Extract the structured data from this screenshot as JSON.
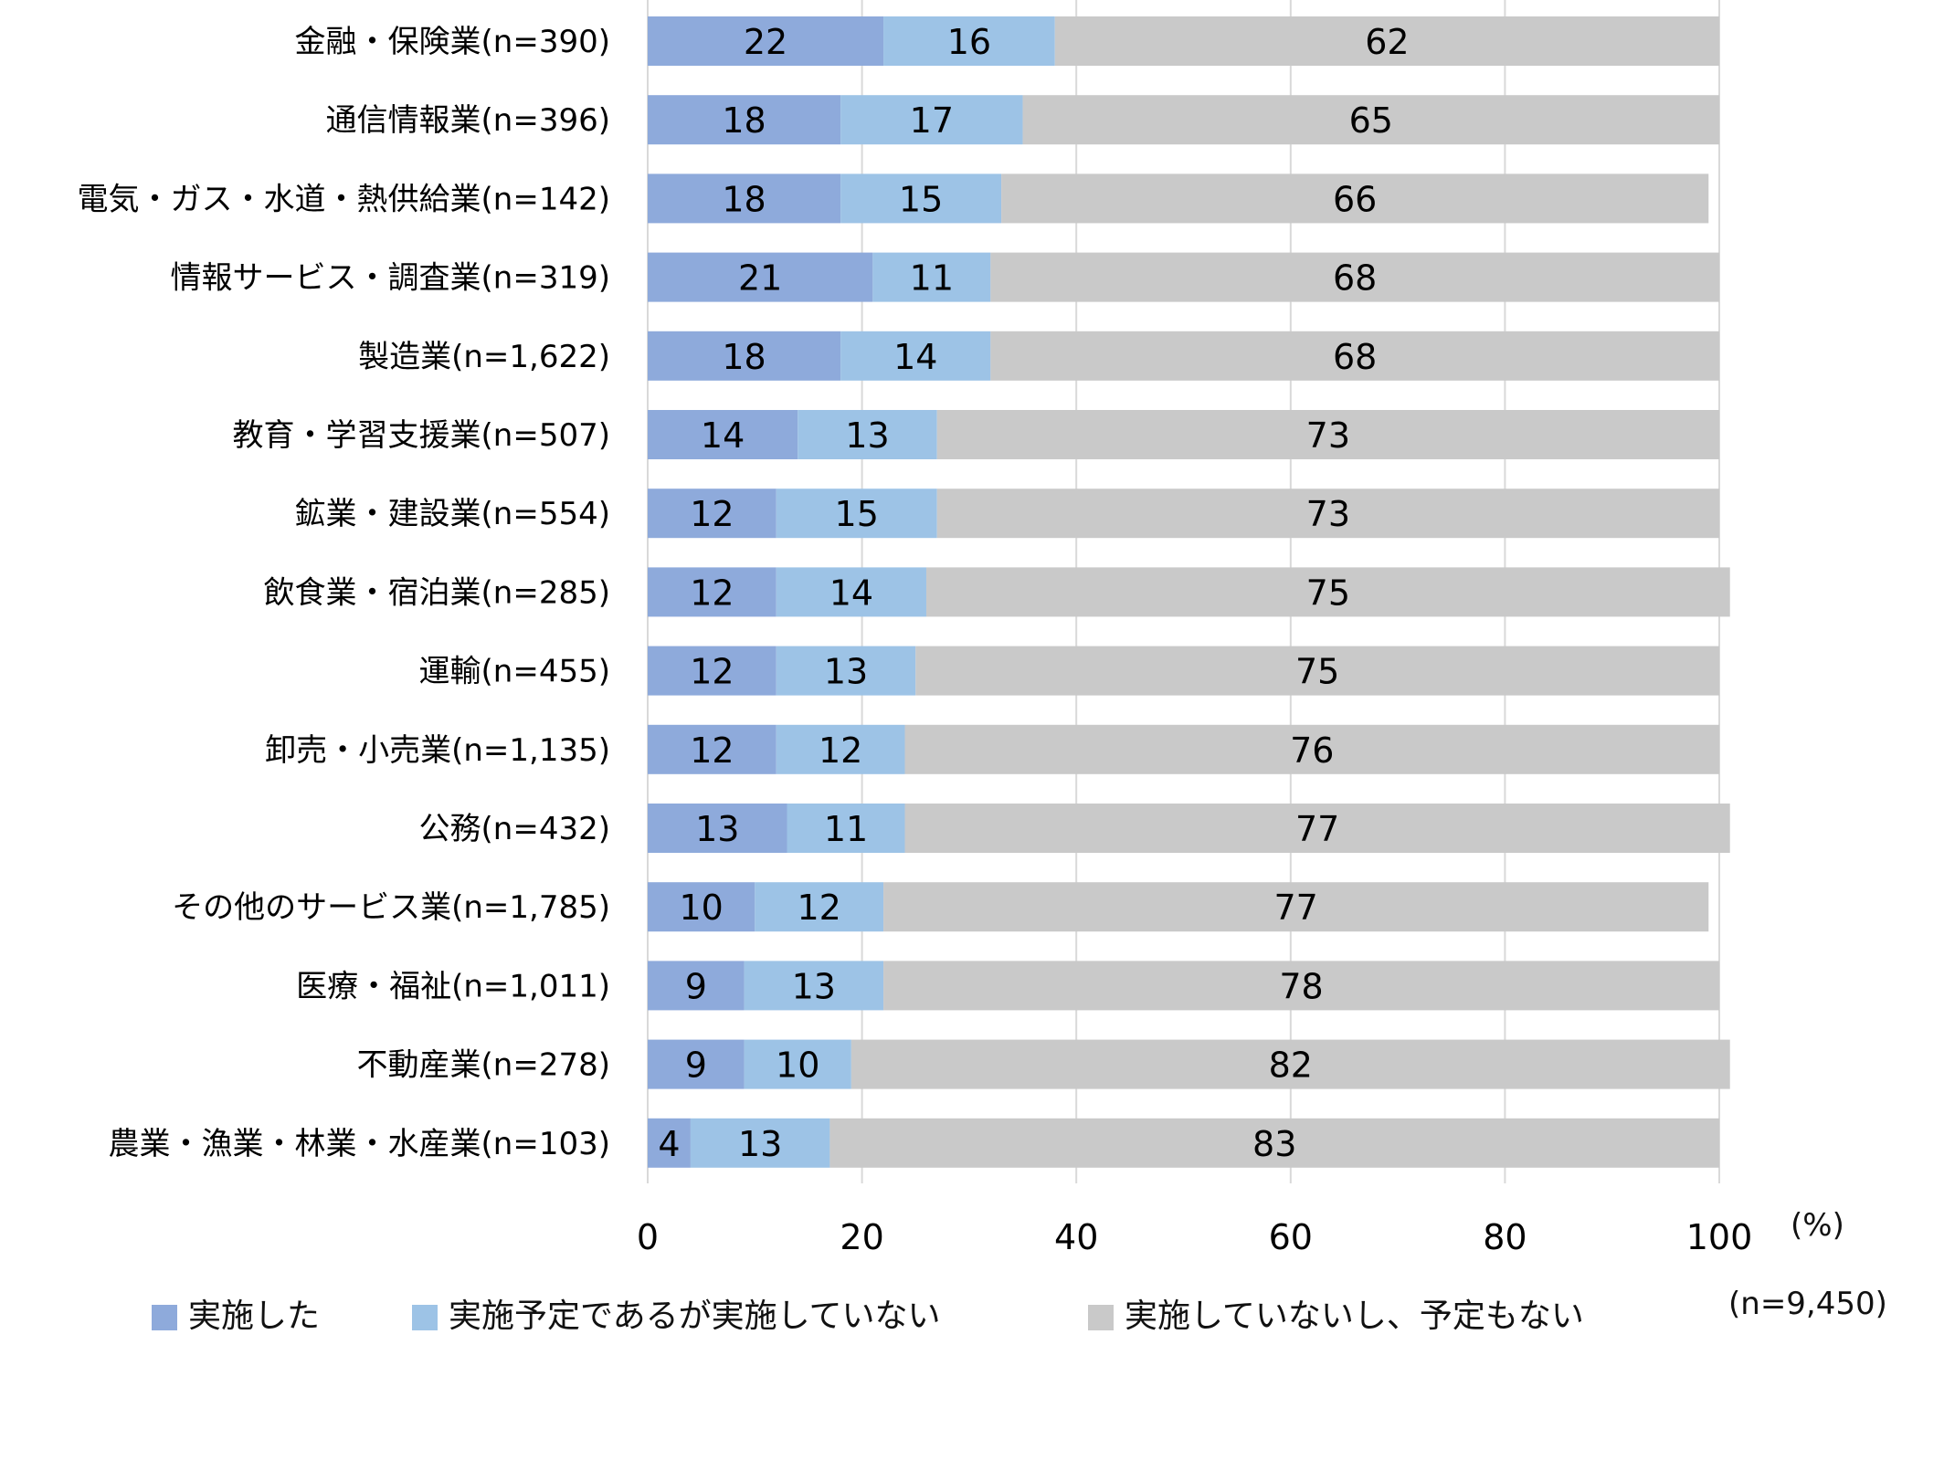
{
  "chart_data": {
    "type": "bar",
    "orientation": "horizontal",
    "stacked": true,
    "categories": [
      "金融・保険業(n=390)",
      "通信情報業(n=396)",
      "電気・ガス・水道・熱供給業(n=142)",
      "情報サービス・調査業(n=319)",
      "製造業(n=1,622)",
      "教育・学習支援業(n=507)",
      "鉱業・建設業(n=554)",
      "飲食業・宿泊業(n=285)",
      "運輸(n=455)",
      "卸売・小売業(n=1,135)",
      "公務(n=432)",
      "その他のサービス業(n=1,785)",
      "医療・福祉(n=1,011)",
      "不動産業(n=278)",
      "農業・漁業・林業・水産業(n=103)"
    ],
    "series": [
      {
        "name": "実施した",
        "color": "#8eaadb",
        "values": [
          22,
          18,
          18,
          21,
          18,
          14,
          12,
          12,
          12,
          12,
          13,
          10,
          9,
          9,
          4
        ]
      },
      {
        "name": "実施予定であるが実施していない",
        "color": "#9dc3e6",
        "values": [
          16,
          17,
          15,
          11,
          14,
          13,
          15,
          14,
          13,
          12,
          11,
          12,
          13,
          10,
          13
        ]
      },
      {
        "name": "実施していないし、予定もない",
        "color": "#c9c9c9",
        "values": [
          62,
          65,
          66,
          68,
          68,
          73,
          73,
          75,
          75,
          76,
          77,
          77,
          78,
          82,
          83
        ]
      }
    ],
    "xlim": [
      0,
      100
    ],
    "xticks": [
      "0",
      "20",
      "40",
      "60",
      "80",
      "100"
    ],
    "xunit": "(%)",
    "total_n": "(n=9,450)",
    "grid": true,
    "legend_position": "bottom"
  }
}
